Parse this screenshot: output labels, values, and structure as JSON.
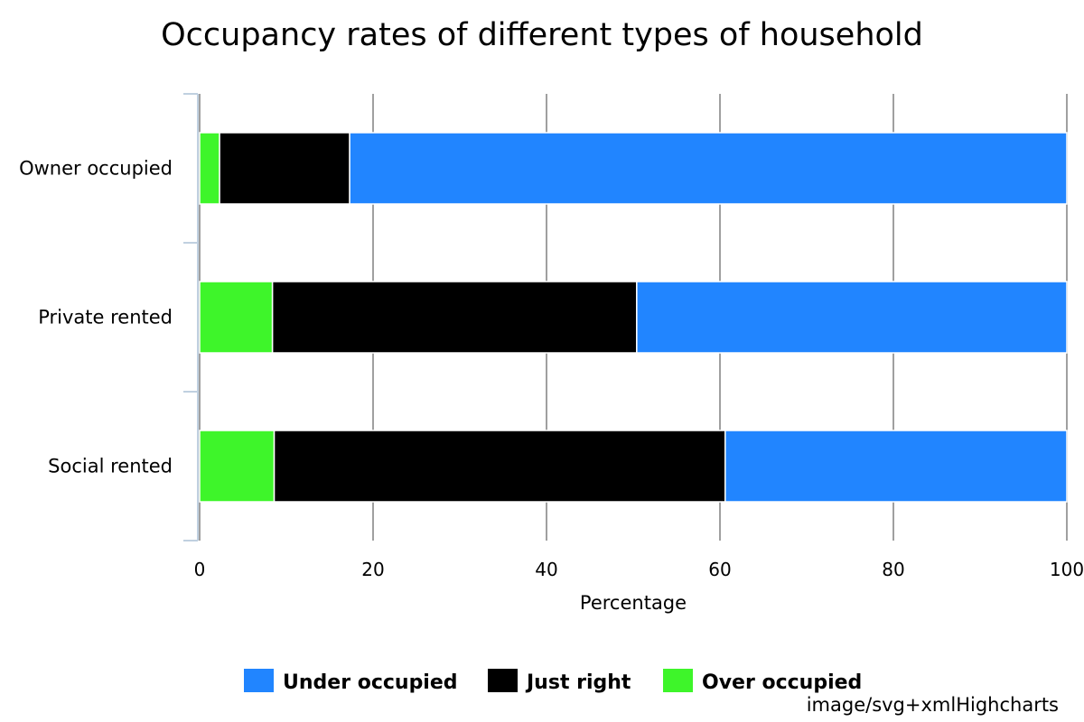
{
  "chart_data": {
    "type": "bar",
    "orientation": "horizontal",
    "stacking": "percent",
    "title": "Occupancy rates of different types of household",
    "categories": [
      "Owner occupied",
      "Private rented",
      "Social rented"
    ],
    "series": [
      {
        "name": "Under occupied",
        "color": "#2185ff",
        "values": [
          82.7,
          49.6,
          39.4
        ]
      },
      {
        "name": "Just right",
        "color": "#000000",
        "values": [
          15.0,
          42.0,
          52.0
        ]
      },
      {
        "name": "Over occupied",
        "color": "#3ef52a",
        "values": [
          2.3,
          8.4,
          8.6
        ]
      }
    ],
    "stack_order_from_axis": [
      "Over occupied",
      "Just right",
      "Under occupied"
    ],
    "xlabel": "Percentage",
    "ylabel": "",
    "xlim": [
      0,
      100
    ],
    "xticks": [
      "0",
      "20",
      "40",
      "60",
      "80",
      "100"
    ],
    "grid": true,
    "legend_placement": "bottom-center",
    "credits": "image/svg+xmlHighcharts"
  }
}
